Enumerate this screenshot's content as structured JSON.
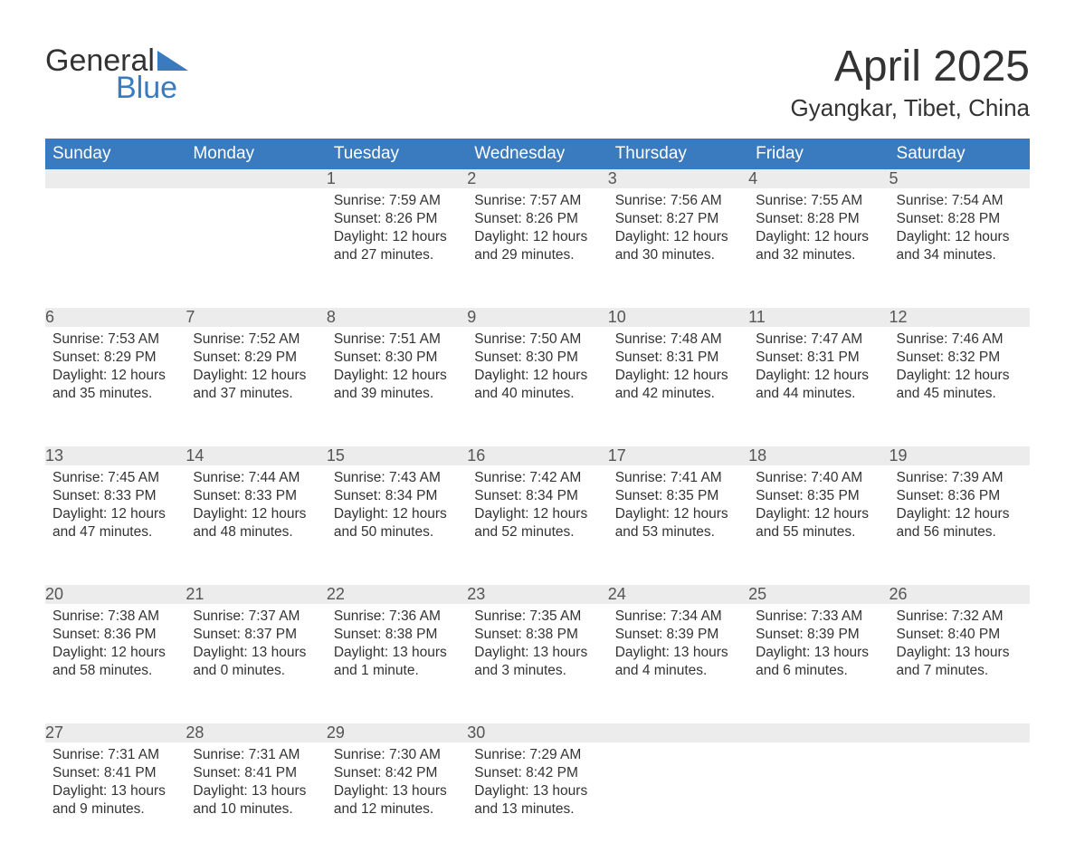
{
  "logo": {
    "text1": "General",
    "text2": "Blue",
    "accent_color": "#3a7bbf"
  },
  "title": "April 2025",
  "location": "Gyangkar, Tibet, China",
  "colors": {
    "header_bg": "#3a7bbf",
    "header_fg": "#ffffff",
    "daynum_bg": "#ececec",
    "row_divider": "#3a7bbf",
    "text": "#333333",
    "background": "#ffffff"
  },
  "typography": {
    "title_fontsize": 48,
    "location_fontsize": 26,
    "weekday_fontsize": 19,
    "daynum_fontsize": 18,
    "body_fontsize": 15.5,
    "font_family": "Arial"
  },
  "calendar": {
    "type": "table",
    "month": "April",
    "year": 2025,
    "start_weekday": "Sunday",
    "weekdays": [
      "Sunday",
      "Monday",
      "Tuesday",
      "Wednesday",
      "Thursday",
      "Friday",
      "Saturday"
    ],
    "weeks": [
      [
        null,
        null,
        {
          "day": 1,
          "sunrise": "7:59 AM",
          "sunset": "8:26 PM",
          "daylight": "12 hours and 27 minutes."
        },
        {
          "day": 2,
          "sunrise": "7:57 AM",
          "sunset": "8:26 PM",
          "daylight": "12 hours and 29 minutes."
        },
        {
          "day": 3,
          "sunrise": "7:56 AM",
          "sunset": "8:27 PM",
          "daylight": "12 hours and 30 minutes."
        },
        {
          "day": 4,
          "sunrise": "7:55 AM",
          "sunset": "8:28 PM",
          "daylight": "12 hours and 32 minutes."
        },
        {
          "day": 5,
          "sunrise": "7:54 AM",
          "sunset": "8:28 PM",
          "daylight": "12 hours and 34 minutes."
        }
      ],
      [
        {
          "day": 6,
          "sunrise": "7:53 AM",
          "sunset": "8:29 PM",
          "daylight": "12 hours and 35 minutes."
        },
        {
          "day": 7,
          "sunrise": "7:52 AM",
          "sunset": "8:29 PM",
          "daylight": "12 hours and 37 minutes."
        },
        {
          "day": 8,
          "sunrise": "7:51 AM",
          "sunset": "8:30 PM",
          "daylight": "12 hours and 39 minutes."
        },
        {
          "day": 9,
          "sunrise": "7:50 AM",
          "sunset": "8:30 PM",
          "daylight": "12 hours and 40 minutes."
        },
        {
          "day": 10,
          "sunrise": "7:48 AM",
          "sunset": "8:31 PM",
          "daylight": "12 hours and 42 minutes."
        },
        {
          "day": 11,
          "sunrise": "7:47 AM",
          "sunset": "8:31 PM",
          "daylight": "12 hours and 44 minutes."
        },
        {
          "day": 12,
          "sunrise": "7:46 AM",
          "sunset": "8:32 PM",
          "daylight": "12 hours and 45 minutes."
        }
      ],
      [
        {
          "day": 13,
          "sunrise": "7:45 AM",
          "sunset": "8:33 PM",
          "daylight": "12 hours and 47 minutes."
        },
        {
          "day": 14,
          "sunrise": "7:44 AM",
          "sunset": "8:33 PM",
          "daylight": "12 hours and 48 minutes."
        },
        {
          "day": 15,
          "sunrise": "7:43 AM",
          "sunset": "8:34 PM",
          "daylight": "12 hours and 50 minutes."
        },
        {
          "day": 16,
          "sunrise": "7:42 AM",
          "sunset": "8:34 PM",
          "daylight": "12 hours and 52 minutes."
        },
        {
          "day": 17,
          "sunrise": "7:41 AM",
          "sunset": "8:35 PM",
          "daylight": "12 hours and 53 minutes."
        },
        {
          "day": 18,
          "sunrise": "7:40 AM",
          "sunset": "8:35 PM",
          "daylight": "12 hours and 55 minutes."
        },
        {
          "day": 19,
          "sunrise": "7:39 AM",
          "sunset": "8:36 PM",
          "daylight": "12 hours and 56 minutes."
        }
      ],
      [
        {
          "day": 20,
          "sunrise": "7:38 AM",
          "sunset": "8:36 PM",
          "daylight": "12 hours and 58 minutes."
        },
        {
          "day": 21,
          "sunrise": "7:37 AM",
          "sunset": "8:37 PM",
          "daylight": "13 hours and 0 minutes."
        },
        {
          "day": 22,
          "sunrise": "7:36 AM",
          "sunset": "8:38 PM",
          "daylight": "13 hours and 1 minute."
        },
        {
          "day": 23,
          "sunrise": "7:35 AM",
          "sunset": "8:38 PM",
          "daylight": "13 hours and 3 minutes."
        },
        {
          "day": 24,
          "sunrise": "7:34 AM",
          "sunset": "8:39 PM",
          "daylight": "13 hours and 4 minutes."
        },
        {
          "day": 25,
          "sunrise": "7:33 AM",
          "sunset": "8:39 PM",
          "daylight": "13 hours and 6 minutes."
        },
        {
          "day": 26,
          "sunrise": "7:32 AM",
          "sunset": "8:40 PM",
          "daylight": "13 hours and 7 minutes."
        }
      ],
      [
        {
          "day": 27,
          "sunrise": "7:31 AM",
          "sunset": "8:41 PM",
          "daylight": "13 hours and 9 minutes."
        },
        {
          "day": 28,
          "sunrise": "7:31 AM",
          "sunset": "8:41 PM",
          "daylight": "13 hours and 10 minutes."
        },
        {
          "day": 29,
          "sunrise": "7:30 AM",
          "sunset": "8:42 PM",
          "daylight": "13 hours and 12 minutes."
        },
        {
          "day": 30,
          "sunrise": "7:29 AM",
          "sunset": "8:42 PM",
          "daylight": "13 hours and 13 minutes."
        },
        null,
        null,
        null
      ]
    ],
    "labels": {
      "sunrise_prefix": "Sunrise: ",
      "sunset_prefix": "Sunset: ",
      "daylight_prefix": "Daylight: "
    }
  }
}
